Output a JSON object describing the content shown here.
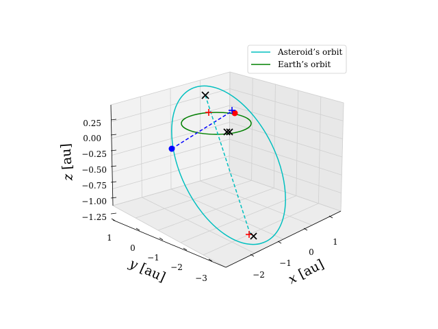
{
  "chart_data": {
    "type": "3d-orbit",
    "xlabel": "$x$ [au]",
    "ylabel": "$y$ [au]",
    "zlabel": "$z$ [au]",
    "xlabel_text": {
      "var": "x",
      "unit": "[au]"
    },
    "ylabel_text": {
      "var": "y",
      "unit": "[au]"
    },
    "zlabel_text": {
      "var": "z",
      "unit": "[au]"
    },
    "xticks": [
      "−2",
      "−1",
      "0",
      "1"
    ],
    "yticks": [
      "1",
      "0",
      "−1",
      "−2",
      "−3"
    ],
    "zticks": [
      "0.25",
      "0.00",
      "−0.25",
      "−0.50",
      "−0.75",
      "−1.00",
      "−1.25"
    ],
    "grid": true,
    "legend": {
      "placement": "top-right",
      "entries": [
        {
          "label": "Asteroid’s orbit",
          "color": "#00bfbf"
        },
        {
          "label": "Earth’s orbit",
          "color": "#008000"
        }
      ]
    },
    "series": [
      {
        "name": "Asteroid’s orbit",
        "color": "#00bfbf",
        "style": "solid"
      },
      {
        "name": "Earth’s orbit",
        "color": "#008000",
        "style": "solid"
      }
    ],
    "markers": {
      "blue_dot_color": "#0000ff",
      "red_dot_color": "#ff0000",
      "cross_color": "#000000"
    }
  }
}
